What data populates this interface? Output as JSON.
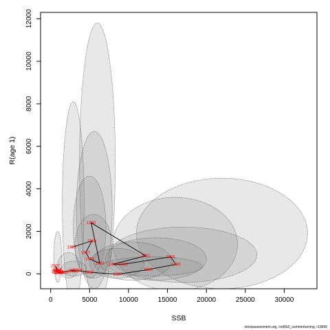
{
  "caption": "stockassessment.org, cod5b2_summerturning, r19696",
  "chart_data": {
    "type": "scatter",
    "title": "",
    "xlabel": "SSB",
    "ylabel": "R(age 1)",
    "xlim": [
      -1300,
      34200
    ],
    "ylim": [
      -700,
      12300
    ],
    "x_ticks": [
      0,
      5000,
      10000,
      15000,
      20000,
      25000,
      30000
    ],
    "x_tick_labels": [
      "0",
      "5000",
      "10000",
      "15000",
      "20000",
      "25000",
      "30000"
    ],
    "y_ticks": [
      0,
      2000,
      4000,
      6000,
      8000,
      10000,
      12000
    ],
    "y_tick_labels": [
      "0",
      "2000",
      "4000",
      "6000",
      "8000",
      "10000",
      "12000"
    ],
    "grid": false,
    "legend": "none",
    "line_color": "#000000",
    "label_color": "#ff0000",
    "ellipse_fill": "#808080",
    "points": [
      {
        "year": "1985",
        "ssb": 2700,
        "rec": 1250
      },
      {
        "year": "1986",
        "ssb": 5300,
        "rec": 1550
      },
      {
        "year": "1987",
        "ssb": 4500,
        "rec": 1000
      },
      {
        "year": "1988",
        "ssb": 5000,
        "rec": 700
      },
      {
        "year": "1989",
        "ssb": 6300,
        "rec": 500
      },
      {
        "year": "1990",
        "ssb": 5200,
        "rec": 2400
      },
      {
        "year": "1991",
        "ssb": 12200,
        "rec": 850
      },
      {
        "year": "1992",
        "ssb": 8000,
        "rec": 450
      },
      {
        "year": "1993",
        "ssb": 9300,
        "rec": 450
      },
      {
        "year": "1994",
        "ssb": 15400,
        "rec": 800
      },
      {
        "year": "1995",
        "ssb": 16100,
        "rec": 450
      },
      {
        "year": "1996",
        "ssb": 12500,
        "rec": 200
      },
      {
        "year": "1997",
        "ssb": 8600,
        "rec": -20
      },
      {
        "year": "1998",
        "ssb": 4900,
        "rec": 80
      },
      {
        "year": "1999",
        "ssb": 3500,
        "rec": 150
      },
      {
        "year": "2000",
        "ssb": 2700,
        "rec": 120
      },
      {
        "year": "2001",
        "ssb": 3000,
        "rec": 180
      },
      {
        "year": "2002",
        "ssb": 1600,
        "rec": 80
      },
      {
        "year": "2003",
        "ssb": 1200,
        "rec": 50
      },
      {
        "year": "2004",
        "ssb": 1000,
        "rec": 60
      },
      {
        "year": "2005",
        "ssb": 800,
        "rec": 100
      },
      {
        "year": "2006",
        "ssb": 800,
        "rec": 150
      },
      {
        "year": "2007",
        "ssb": 600,
        "rec": 380
      },
      {
        "year": "2008",
        "ssb": 900,
        "rec": 200
      },
      {
        "year": "2009",
        "ssb": 700,
        "rec": 120
      },
      {
        "year": "2010",
        "ssb": 1100,
        "rec": 80
      }
    ],
    "ellipses": [
      {
        "cx": 6000,
        "cy": 5200,
        "rx": 2300,
        "ry": 6600
      },
      {
        "cx": 2900,
        "cy": 3300,
        "rx": 1400,
        "ry": 4800
      },
      {
        "cx": 5600,
        "cy": 3000,
        "rx": 2300,
        "ry": 3700
      },
      {
        "cx": 5000,
        "cy": 2200,
        "rx": 2100,
        "ry": 2400
      },
      {
        "cx": 5500,
        "cy": 1300,
        "rx": 2400,
        "ry": 1500
      },
      {
        "cx": 22000,
        "cy": 1900,
        "rx": 11000,
        "ry": 2600
      },
      {
        "cx": 16000,
        "cy": 1400,
        "rx": 8000,
        "ry": 2200
      },
      {
        "cx": 17000,
        "cy": 900,
        "rx": 9500,
        "ry": 1300
      },
      {
        "cx": 13500,
        "cy": 700,
        "rx": 6500,
        "ry": 1000
      },
      {
        "cx": 10500,
        "cy": 600,
        "rx": 5000,
        "ry": 900
      },
      {
        "cx": 8500,
        "cy": 500,
        "rx": 3500,
        "ry": 700
      },
      {
        "cx": 13000,
        "cy": 350,
        "rx": 6500,
        "ry": 450
      },
      {
        "cx": 900,
        "cy": 800,
        "rx": 500,
        "ry": 1200
      },
      {
        "cx": 2300,
        "cy": 400,
        "rx": 1400,
        "ry": 600
      },
      {
        "cx": 3000,
        "cy": 250,
        "rx": 1600,
        "ry": 350
      }
    ]
  }
}
